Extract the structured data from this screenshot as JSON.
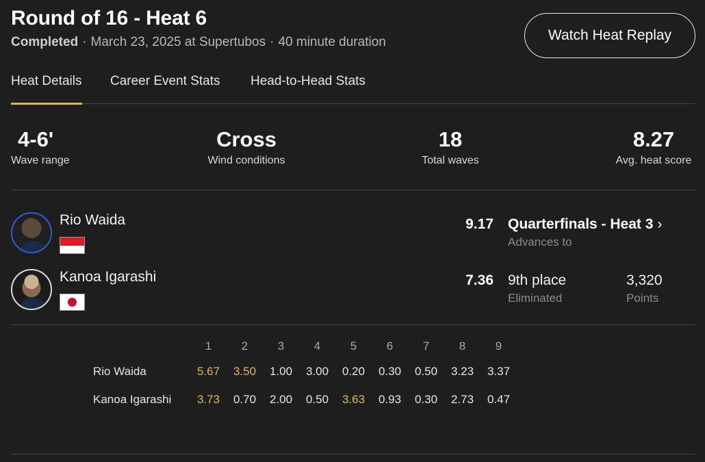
{
  "header": {
    "title": "Round of 16 - Heat 6",
    "status": "Completed",
    "sep": "·",
    "date_location": "March 23, 2025 at Supertubos",
    "duration": "40 minute duration",
    "replay_label": "Watch Heat Replay"
  },
  "tabs": [
    {
      "label": "Heat Details",
      "active": true
    },
    {
      "label": "Career Event Stats",
      "active": false
    },
    {
      "label": "Head-to-Head Stats",
      "active": false
    }
  ],
  "stats": [
    {
      "value": "4-6'",
      "label": "Wave range"
    },
    {
      "value": "Cross",
      "label": "Wind conditions"
    },
    {
      "value": "18",
      "label": "Total waves"
    },
    {
      "value": "8.27",
      "label": "Avg. heat score"
    }
  ],
  "surfers": [
    {
      "name": "Rio Waida",
      "flag": "indonesia-flag",
      "score": "9.17",
      "result": "Quarterfinals - Heat 3",
      "result_chevron": "›",
      "result_label": "Advances to"
    },
    {
      "name": "Kanoa Igarashi",
      "flag": "japan-flag",
      "score": "7.36",
      "result": "9th place",
      "result_label": "Eliminated",
      "points": "3,320",
      "points_label": "Points"
    }
  ],
  "waves": {
    "columns": [
      "1",
      "2",
      "3",
      "4",
      "5",
      "6",
      "7",
      "8",
      "9"
    ],
    "highlight_color": "#e2b74a",
    "rows": [
      {
        "name": "Rio Waida",
        "scores": [
          "5.67",
          "3.50",
          "1.00",
          "3.00",
          "0.20",
          "0.30",
          "0.50",
          "3.23",
          "3.37"
        ],
        "counting": [
          0,
          1
        ]
      },
      {
        "name": "Kanoa Igarashi",
        "scores": [
          "3.73",
          "0.70",
          "2.00",
          "0.50",
          "3.63",
          "0.93",
          "0.30",
          "2.73",
          "0.47"
        ],
        "counting": [
          0,
          4
        ]
      }
    ]
  },
  "colors": {
    "background": "#1e1e1e",
    "accent": "#e2b74a",
    "avatar_ring": "#2b5fd9"
  }
}
